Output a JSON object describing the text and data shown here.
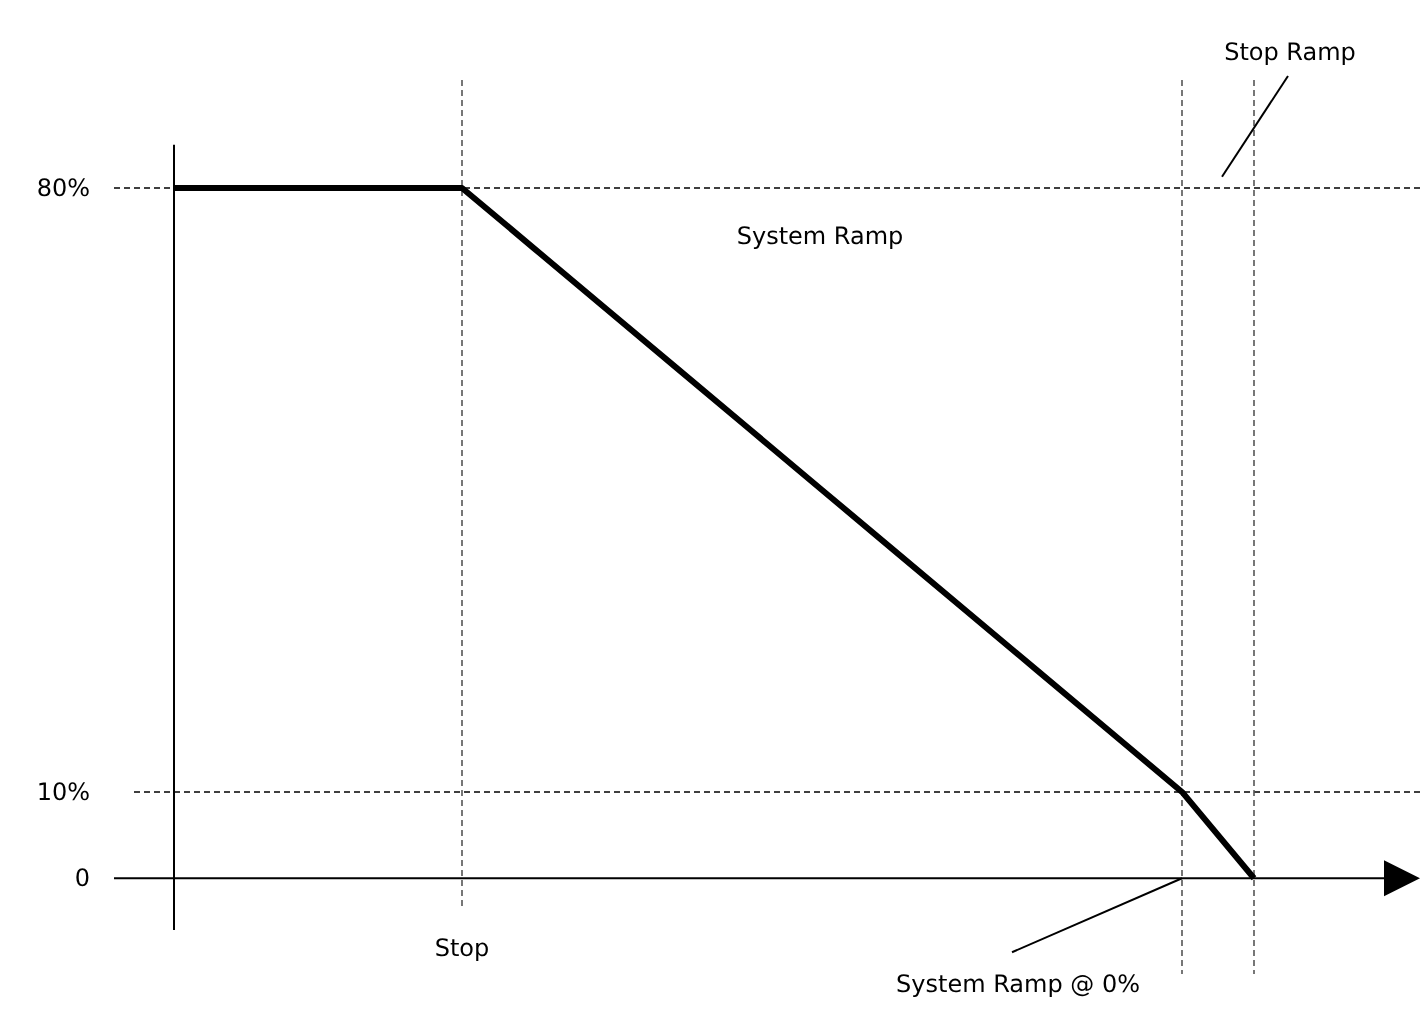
{
  "chart_data": {
    "type": "line",
    "categories": [
      null,
      null,
      null,
      null,
      null,
      null,
      null,
      null,
      null,
      null,
      null,
      null,
      null,
      null,
      null,
      null,
      null
    ],
    "values": [
      80,
      80,
      80,
      80,
      80,
      73,
      66,
      59,
      52,
      45,
      38,
      31,
      24,
      17,
      10,
      0,
      null
    ],
    "color": "#000000",
    "ylim": [
      -6,
      85
    ],
    "yticks": [
      0,
      {
        "value": 10,
        "label": "10%"
      },
      {
        "value": 80,
        "label": "80%"
      }
    ],
    "tick_labels": "y",
    "grid": true,
    "marker": "none",
    "line_style": "solid",
    "annotations": [
      "System Ramp",
      "Stop Ramp",
      "System Ramp @ 0%",
      "Stop"
    ]
  }
}
